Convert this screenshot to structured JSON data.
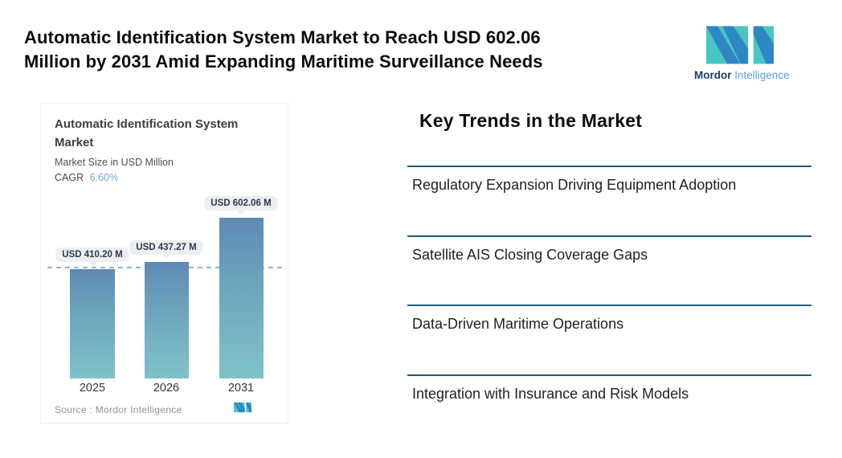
{
  "headline": {
    "lines": [
      "Automatic Identification System Market to Reach USD 602.06",
      "Million by 2031 Amid Expanding Maritime Surveillance Needs"
    ]
  },
  "brand": {
    "name_bold": "Mordor",
    "name_light": "Intelligence"
  },
  "colors": {
    "brand_teal": "#49C6C3",
    "brand_blue": "#2E86C3",
    "brand_navy": "#1B3C6B",
    "brand_lightblue": "#5D9FD3",
    "trend_rule": "#1E5A78",
    "bar_top": "#5D8AB4",
    "bar_bottom": "#7FC2C9",
    "dashed_reference_line": "#8FB3D6",
    "value_pill_bg": "#ECEFF1",
    "value_pill_text": "#2D3A4F",
    "cagr_value_blue": "#74A7D8"
  },
  "chart_data": {
    "type": "bar",
    "title": "Automatic Identification System Market",
    "title_lines": [
      "Automatic Identification System",
      "Market"
    ],
    "subtitle": "Market Size in USD Million",
    "cagr_label": "CAGR",
    "cagr_value": "6.60%",
    "categories": [
      "2025",
      "2026",
      "2031"
    ],
    "values": [
      410.2,
      437.27,
      602.06
    ],
    "labels": [
      "USD 410.20 M",
      "USD 437.27 M",
      "USD 602.06 M"
    ],
    "unit": "USD Million",
    "ylim": [
      0,
      602.06
    ],
    "reference_line": 410.2,
    "grid": false,
    "legend": false,
    "source": "Source :  Mordor Intelligence"
  },
  "trends": {
    "heading": "Key Trends in the Market",
    "items": [
      "Regulatory Expansion Driving Equipment Adoption",
      "Satellite AIS Closing Coverage Gaps",
      "Data-Driven Maritime Operations",
      "Integration with Insurance and Risk Models"
    ]
  }
}
